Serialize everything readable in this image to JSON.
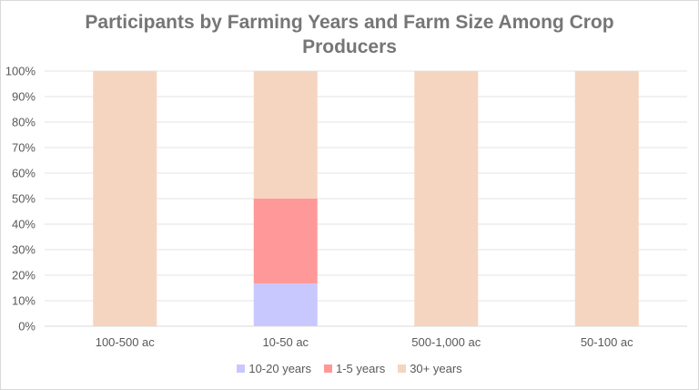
{
  "chart_data": {
    "type": "bar",
    "stacked": true,
    "percent": true,
    "title": "Participants by Farming Years and Farm Size Among Crop Producers",
    "categories": [
      "100-500 ac",
      "10-50 ac",
      "500-1,000 ac",
      "50-100 ac"
    ],
    "series": [
      {
        "name": "10-20 years",
        "color": "#c8c8ff",
        "values": [
          0,
          16.7,
          0,
          0
        ]
      },
      {
        "name": "1-5 years",
        "color": "#ff9999",
        "values": [
          0,
          33.3,
          0,
          0
        ]
      },
      {
        "name": "30+ years",
        "color": "#f6d5c0",
        "values": [
          100,
          50,
          100,
          100
        ]
      }
    ],
    "ylim": [
      0,
      100
    ],
    "yticks": [
      "0%",
      "10%",
      "20%",
      "30%",
      "40%",
      "50%",
      "60%",
      "70%",
      "80%",
      "90%",
      "100%"
    ],
    "grid": true,
    "legend_position": "bottom"
  }
}
